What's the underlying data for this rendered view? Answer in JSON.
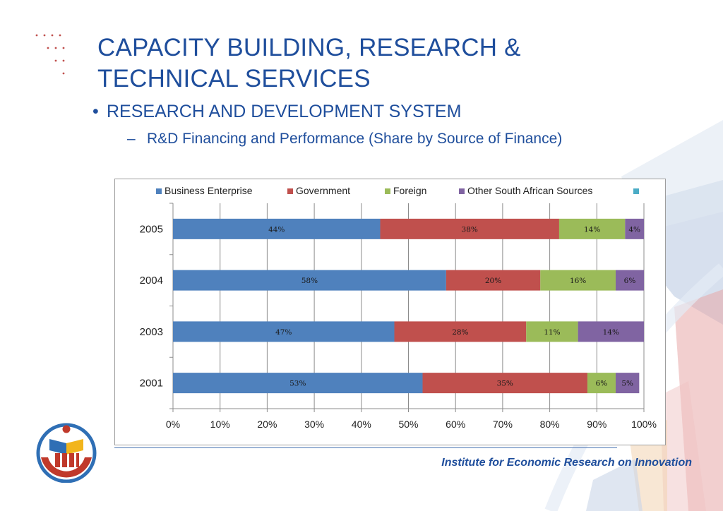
{
  "slide": {
    "title": "CAPACITY BUILDING, RESEARCH & TECHNICAL SERVICES",
    "bullet": "RESEARCH AND DEVELOPMENT SYSTEM",
    "subbullet": "R&D Financing and Performance (Share by Source of Finance)",
    "footer": "Institute for Economic Research on Innovation"
  },
  "chart_data": {
    "type": "bar",
    "orientation": "horizontal",
    "stacked": true,
    "categories": [
      "2001",
      "2003",
      "2004",
      "2005"
    ],
    "series": [
      {
        "name": "Business Enterprise",
        "color": "#4f81bd",
        "values": [
          53,
          47,
          58,
          44
        ],
        "labels": [
          "53%",
          "47%",
          "58%",
          "44%"
        ]
      },
      {
        "name": "Government",
        "color": "#c0504d",
        "values": [
          35,
          28,
          20,
          38
        ],
        "labels": [
          "35%",
          "28%",
          "20%",
          "38%"
        ]
      },
      {
        "name": "Foreign",
        "color": "#9bbb59",
        "values": [
          6,
          11,
          16,
          14
        ],
        "labels": [
          "6%",
          "11%",
          "16%",
          "14%"
        ]
      },
      {
        "name": "Other South African Sources",
        "color": "#8064a2",
        "values": [
          5,
          14,
          6,
          4
        ],
        "labels": [
          "5%",
          "14%",
          "6%",
          "4%"
        ]
      },
      {
        "name": "",
        "color": "#4bacc6",
        "values": [
          0,
          0,
          0,
          0
        ],
        "labels": [
          "",
          "",
          "",
          ""
        ]
      }
    ],
    "xlim": [
      0,
      100
    ],
    "xticks": [
      "0%",
      "10%",
      "20%",
      "30%",
      "40%",
      "50%",
      "60%",
      "70%",
      "80%",
      "90%",
      "100%"
    ],
    "grid": true,
    "legend": "top"
  }
}
